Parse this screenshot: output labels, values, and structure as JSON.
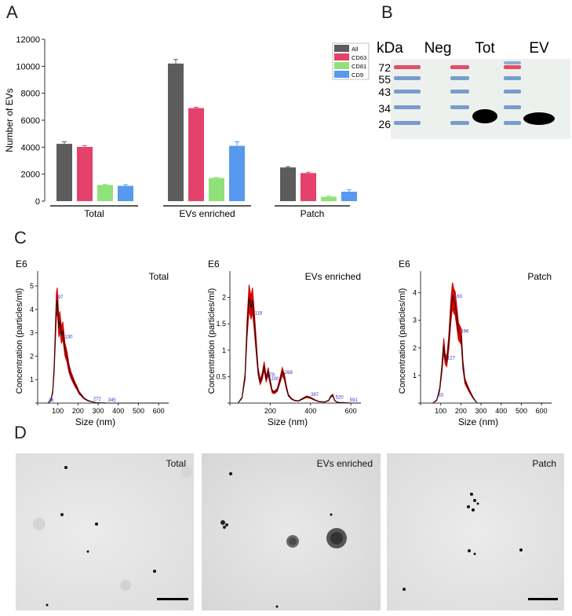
{
  "panels": {
    "a": "A",
    "b": "B",
    "c": "C",
    "d": "D"
  },
  "chart_data": [
    {
      "type": "bar",
      "ylabel": "Number of EVs",
      "ylim": [
        0,
        12000
      ],
      "yticks": [
        0,
        2000,
        4000,
        6000,
        8000,
        10000,
        12000
      ],
      "categories": [
        "Total",
        "EVs enriched",
        "Patch"
      ],
      "series": [
        {
          "name": "All",
          "color": "#5c5c5c",
          "values": [
            4250,
            10200,
            2500
          ],
          "errors": [
            150,
            300,
            60
          ]
        },
        {
          "name": "CD63",
          "color": "#e4416b",
          "values": [
            4020,
            6900,
            2080
          ],
          "errors": [
            100,
            60,
            60
          ]
        },
        {
          "name": "CD81",
          "color": "#8fe27a",
          "values": [
            1200,
            1720,
            330
          ],
          "errors": [
            40,
            40,
            40
          ]
        },
        {
          "name": "CD9",
          "color": "#5699ef",
          "values": [
            1130,
            4100,
            700
          ],
          "errors": [
            90,
            300,
            150
          ]
        }
      ],
      "legend": "top-right"
    },
    {
      "type": "line",
      "title": "Total",
      "scale_label": "E6",
      "ylabel": "Concentration (particles/ml)",
      "xlabel": "Size (nm)",
      "xlim": [
        0,
        650
      ],
      "ylim": [
        0,
        5.3
      ],
      "xticks": [
        0,
        100,
        200,
        300,
        400,
        500,
        600
      ],
      "yticks": [
        0,
        1,
        2,
        3,
        4,
        5
      ],
      "x": [
        50,
        65,
        75,
        82,
        88,
        93,
        97,
        101,
        105,
        110,
        118,
        125,
        135,
        145,
        155,
        165,
        175,
        185,
        195,
        205,
        215,
        230,
        250,
        272,
        290,
        310,
        345,
        400,
        650
      ],
      "y": [
        0,
        0.1,
        0.5,
        1.5,
        3.0,
        4.2,
        4.4,
        3.9,
        3.2,
        3.5,
        2.9,
        3.1,
        2.3,
        2.0,
        1.5,
        1.2,
        1.0,
        0.8,
        0.65,
        0.45,
        0.35,
        0.2,
        0.1,
        0.05,
        0.02,
        0.01,
        0.0,
        0.0,
        0
      ],
      "peak_labels": [
        {
          "x": 97,
          "label": "97"
        },
        {
          "x": 130,
          "label": "130"
        },
        {
          "x": 50,
          "label": "48"
        },
        {
          "x": 272,
          "label": "272"
        },
        {
          "x": 345,
          "label": "345"
        }
      ]
    },
    {
      "type": "line",
      "title": "EVs enriched",
      "scale_label": "E6",
      "ylabel": "Concentration (particles/ml)",
      "xlabel": "Size (nm)",
      "xlim": [
        0,
        650
      ],
      "ylim": [
        0,
        2.35
      ],
      "xticks": [
        0,
        200,
        400,
        600
      ],
      "yticks": [
        0,
        0.5,
        1,
        1.5,
        2
      ],
      "ytick_labels": [
        "0",
        "0.5",
        "1",
        "1.5",
        "2"
      ],
      "x": [
        40,
        60,
        75,
        85,
        95,
        105,
        112,
        120,
        130,
        140,
        150,
        160,
        170,
        180,
        190,
        200,
        210,
        220,
        235,
        250,
        260,
        270,
        280,
        290,
        305,
        320,
        340,
        360,
        380,
        400,
        420,
        440,
        470,
        490,
        500,
        510,
        520,
        530,
        545,
        560,
        600,
        650
      ],
      "y": [
        0,
        0.1,
        0.5,
        1.4,
        2.0,
        1.8,
        1.95,
        1.6,
        1.1,
        0.6,
        0.4,
        0.5,
        0.7,
        0.45,
        0.6,
        0.4,
        0.22,
        0.2,
        0.25,
        0.45,
        0.6,
        0.5,
        0.3,
        0.15,
        0.08,
        0.05,
        0.04,
        0.08,
        0.12,
        0.1,
        0.06,
        0.03,
        0.02,
        0.05,
        0.12,
        0.15,
        0.05,
        0.02,
        0.01,
        0.01,
        0.0,
        0
      ],
      "peak_labels": [
        {
          "x": 119,
          "label": "119"
        },
        {
          "x": 179,
          "label": "179"
        },
        {
          "x": 268,
          "label": "268"
        },
        {
          "x": 200,
          "label": "200"
        },
        {
          "x": 397,
          "label": "397"
        },
        {
          "x": 520,
          "label": "520"
        },
        {
          "x": 591,
          "label": "591"
        }
      ]
    },
    {
      "type": "line",
      "title": "Patch",
      "scale_label": "E6",
      "ylabel": "Concentration (particles/ml)",
      "xlabel": "Size (nm)",
      "xlim": [
        0,
        650
      ],
      "ylim": [
        0,
        4.5
      ],
      "xticks": [
        0,
        100,
        200,
        300,
        400,
        500,
        600
      ],
      "yticks": [
        0,
        1,
        2,
        3,
        4
      ],
      "x": [
        60,
        80,
        95,
        105,
        115,
        122,
        130,
        140,
        150,
        158,
        165,
        172,
        180,
        188,
        195,
        202,
        210,
        220,
        232,
        245,
        260,
        280,
        650
      ],
      "y": [
        0,
        0.1,
        0.5,
        1.2,
        2.1,
        1.6,
        1.5,
        2.2,
        3.3,
        3.9,
        3.7,
        3.6,
        3.1,
        2.6,
        2.5,
        2.4,
        1.4,
        0.8,
        0.6,
        0.4,
        0.2,
        0.0,
        0
      ],
      "peak_labels": [
        {
          "x": 83,
          "label": "83"
        },
        {
          "x": 128,
          "label": "127"
        },
        {
          "x": 163,
          "label": "163"
        },
        {
          "x": 196,
          "label": "196"
        }
      ]
    }
  ],
  "western_blot": {
    "kda_label": "kDa",
    "lanes": [
      "Neg",
      "Tot",
      "EV"
    ],
    "markers": [
      "72",
      "55",
      "43",
      "34",
      "26"
    ]
  },
  "tem": [
    {
      "label": "Total"
    },
    {
      "label": "EVs enriched"
    },
    {
      "label": "Patch"
    }
  ]
}
